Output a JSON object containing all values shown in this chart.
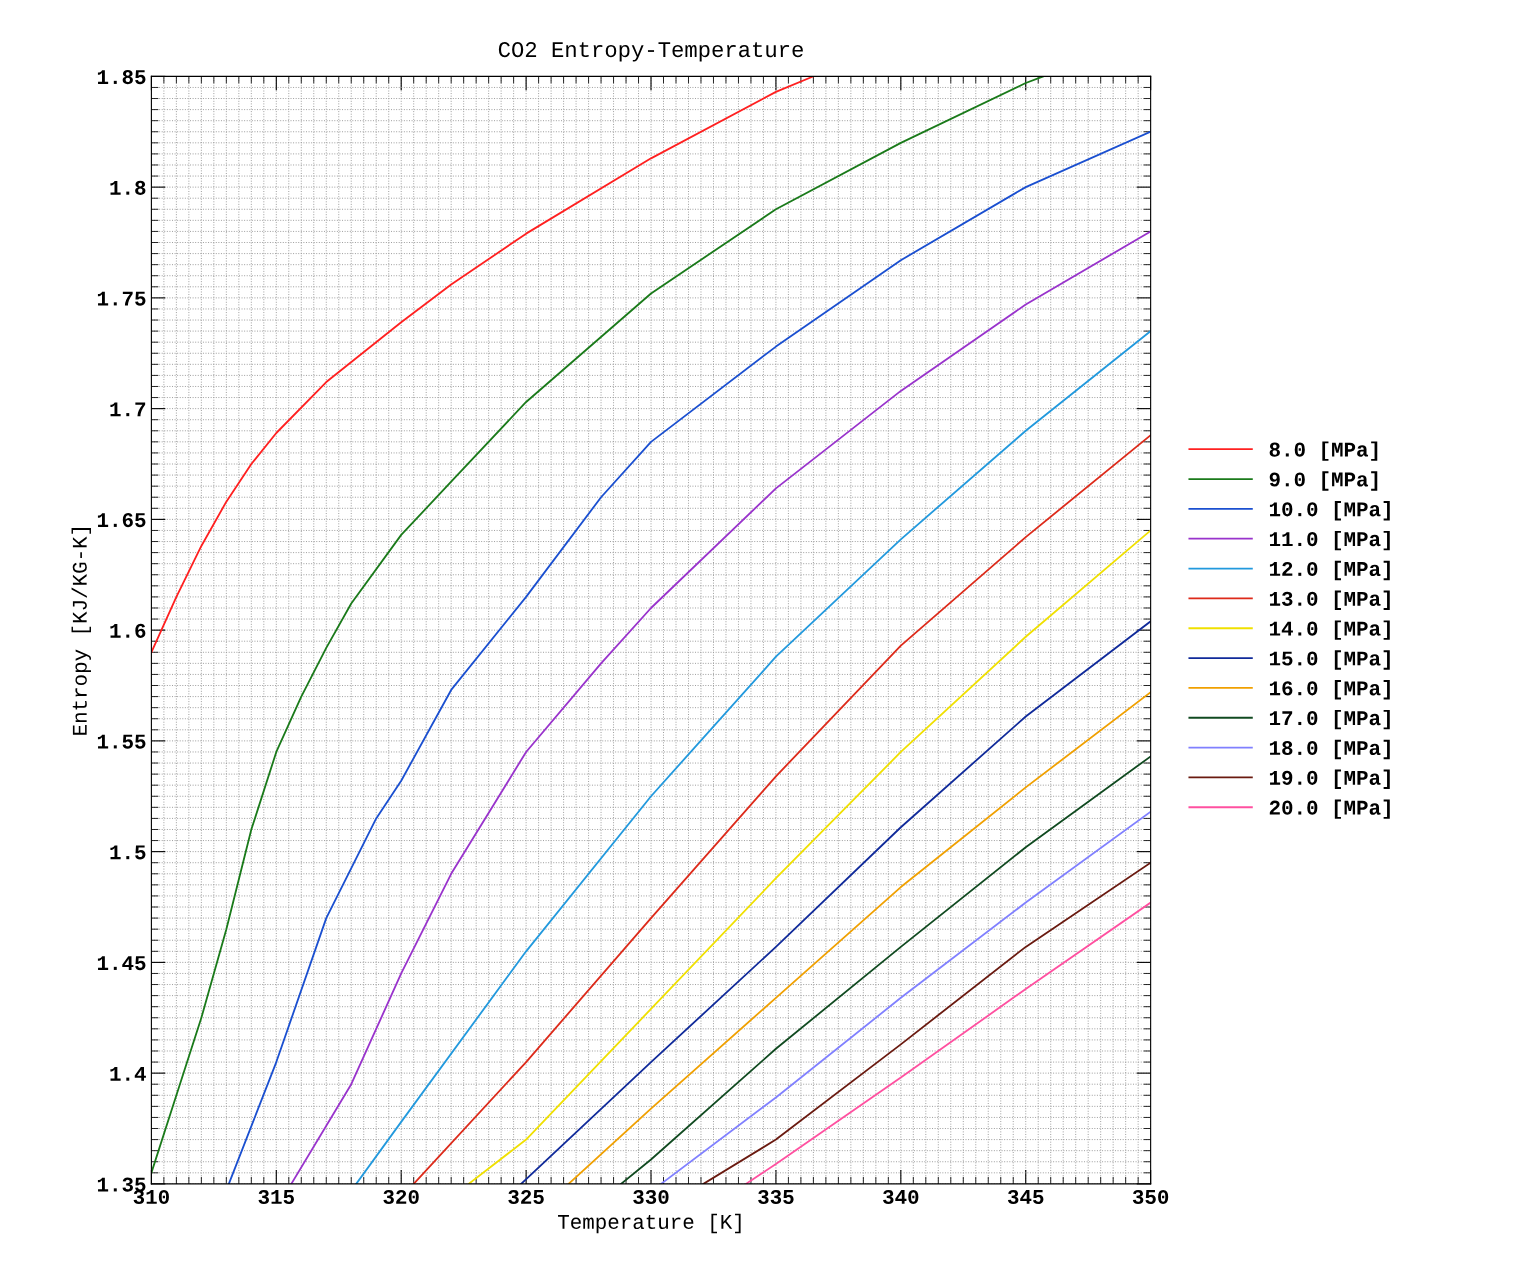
{
  "chart_data": {
    "type": "line",
    "title": "CO2 Entropy-Temperature",
    "xlabel": "Temperature [K]",
    "ylabel": "Entropy [KJ/KG-K]",
    "xlim": [
      310,
      350
    ],
    "ylim": [
      1.35,
      1.85
    ],
    "xticks": [
      310,
      315,
      320,
      325,
      330,
      335,
      340,
      345,
      350
    ],
    "yticks": [
      1.35,
      1.4,
      1.45,
      1.5,
      1.55,
      1.6,
      1.65,
      1.7,
      1.75,
      1.8,
      1.85
    ],
    "grid": true,
    "legend": "right",
    "marker": "none",
    "line_style": "solid",
    "series": [
      {
        "name": "8.0 [MPa]",
        "color": "#ff2020",
        "x": [
          310,
          311,
          312,
          313,
          314,
          315,
          317,
          320,
          322,
          325,
          330,
          335,
          336.5
        ],
        "values": [
          1.59,
          1.615,
          1.638,
          1.658,
          1.675,
          1.689,
          1.712,
          1.739,
          1.756,
          1.779,
          1.813,
          1.843,
          1.85
        ]
      },
      {
        "name": "9.0 [MPa]",
        "color": "#1a7a1a",
        "x": [
          310,
          311,
          312,
          313,
          314,
          315,
          316,
          317,
          318,
          320,
          322,
          325,
          330,
          335,
          340,
          345,
          345.7
        ],
        "values": [
          1.355,
          1.39,
          1.425,
          1.465,
          1.51,
          1.545,
          1.57,
          1.592,
          1.612,
          1.643,
          1.667,
          1.703,
          1.752,
          1.79,
          1.82,
          1.847,
          1.85
        ]
      },
      {
        "name": "10.0 [MPa]",
        "color": "#1a4fd0",
        "x": [
          313.1,
          315,
          317,
          319,
          320,
          322,
          325,
          328,
          330,
          335,
          340,
          345,
          350
        ],
        "values": [
          1.35,
          1.405,
          1.47,
          1.515,
          1.532,
          1.573,
          1.615,
          1.66,
          1.685,
          1.728,
          1.767,
          1.8,
          1.825
        ]
      },
      {
        "name": "11.0 [MPa]",
        "color": "#9933cc",
        "x": [
          315.6,
          318,
          320,
          322,
          325,
          328,
          330,
          335,
          340,
          345,
          350
        ],
        "values": [
          1.35,
          1.395,
          1.445,
          1.49,
          1.545,
          1.585,
          1.61,
          1.664,
          1.708,
          1.747,
          1.78
        ]
      },
      {
        "name": "12.0 [MPa]",
        "color": "#2299dd",
        "x": [
          318.2,
          320,
          325,
          330,
          335,
          340,
          345,
          350
        ],
        "values": [
          1.35,
          1.378,
          1.455,
          1.525,
          1.588,
          1.641,
          1.69,
          1.735
        ]
      },
      {
        "name": "13.0 [MPa]",
        "color": "#dd2a1a",
        "x": [
          320.5,
          325,
          330,
          335,
          340,
          345,
          350
        ],
        "values": [
          1.35,
          1.405,
          1.47,
          1.534,
          1.593,
          1.642,
          1.688
        ]
      },
      {
        "name": "14.0 [MPa]",
        "color": "#f0e000",
        "x": [
          322.7,
          325,
          330,
          335,
          340,
          345,
          350
        ],
        "values": [
          1.35,
          1.37,
          1.429,
          1.488,
          1.545,
          1.597,
          1.645
        ]
      },
      {
        "name": "15.0 [MPa]",
        "color": "#102a9a",
        "x": [
          324.8,
          330,
          335,
          340,
          345,
          350
        ],
        "values": [
          1.35,
          1.405,
          1.457,
          1.511,
          1.561,
          1.604
        ]
      },
      {
        "name": "16.0 [MPa]",
        "color": "#f0a000",
        "x": [
          326.7,
          330,
          335,
          340,
          345,
          350
        ],
        "values": [
          1.35,
          1.384,
          1.434,
          1.484,
          1.529,
          1.572
        ]
      },
      {
        "name": "17.0 [MPa]",
        "color": "#104a20",
        "x": [
          328.8,
          330,
          335,
          340,
          345,
          350
        ],
        "values": [
          1.35,
          1.361,
          1.411,
          1.457,
          1.502,
          1.543
        ]
      },
      {
        "name": "18.0 [MPa]",
        "color": "#8080ff",
        "x": [
          330.4,
          335,
          340,
          345,
          350
        ],
        "values": [
          1.35,
          1.389,
          1.434,
          1.477,
          1.518
        ]
      },
      {
        "name": "19.0 [MPa]",
        "color": "#6a1a10",
        "x": [
          332.1,
          335,
          340,
          345,
          350
        ],
        "values": [
          1.35,
          1.37,
          1.413,
          1.457,
          1.495
        ]
      },
      {
        "name": "20.0 [MPa]",
        "color": "#ff50a0",
        "x": [
          333.8,
          335,
          340,
          345,
          350
        ],
        "values": [
          1.35,
          1.359,
          1.398,
          1.438,
          1.477
        ]
      }
    ]
  }
}
